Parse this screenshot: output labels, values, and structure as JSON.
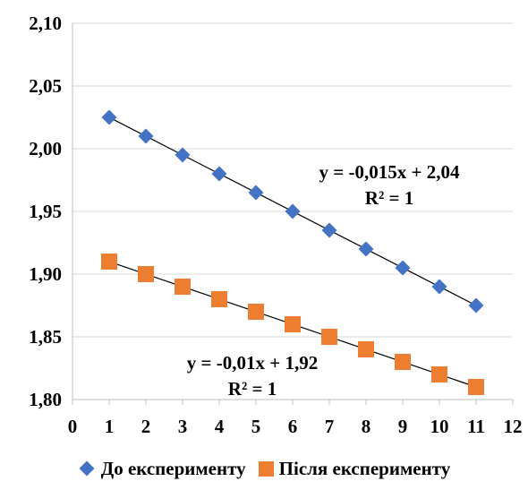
{
  "chart_data": {
    "type": "scatter",
    "title": "",
    "xlabel": "",
    "ylabel": "",
    "xlim": [
      0,
      12
    ],
    "ylim": [
      1.8,
      2.1
    ],
    "x_ticks": [
      "0",
      "1",
      "2",
      "3",
      "4",
      "5",
      "6",
      "7",
      "8",
      "9",
      "10",
      "11",
      "12"
    ],
    "y_ticks": [
      "1,80",
      "1,85",
      "1,90",
      "1,95",
      "2,00",
      "2,05",
      "2,10"
    ],
    "grid": "horizontal",
    "legend_position": "bottom",
    "series": [
      {
        "name": "До експерименту",
        "marker": "diamond",
        "color": "#4472C4",
        "x": [
          1,
          2,
          3,
          4,
          5,
          6,
          7,
          8,
          9,
          10,
          11
        ],
        "y": [
          2.025,
          2.01,
          1.995,
          1.98,
          1.965,
          1.95,
          1.935,
          1.92,
          1.905,
          1.89,
          1.875
        ],
        "trendline": {
          "slope": -0.015,
          "intercept": 2.04
        },
        "equation": "y = -0,015x + 2,04",
        "r2": "R² = 1"
      },
      {
        "name": "Після експерименту",
        "marker": "square",
        "color": "#ED7D31",
        "x": [
          1,
          2,
          3,
          4,
          5,
          6,
          7,
          8,
          9,
          10,
          11
        ],
        "y": [
          1.91,
          1.9,
          1.89,
          1.88,
          1.87,
          1.86,
          1.85,
          1.84,
          1.83,
          1.82,
          1.81
        ],
        "trendline": {
          "slope": -0.01,
          "intercept": 1.92
        },
        "equation": "y = -0,01x + 1,92",
        "r2": "R² = 1"
      }
    ]
  }
}
